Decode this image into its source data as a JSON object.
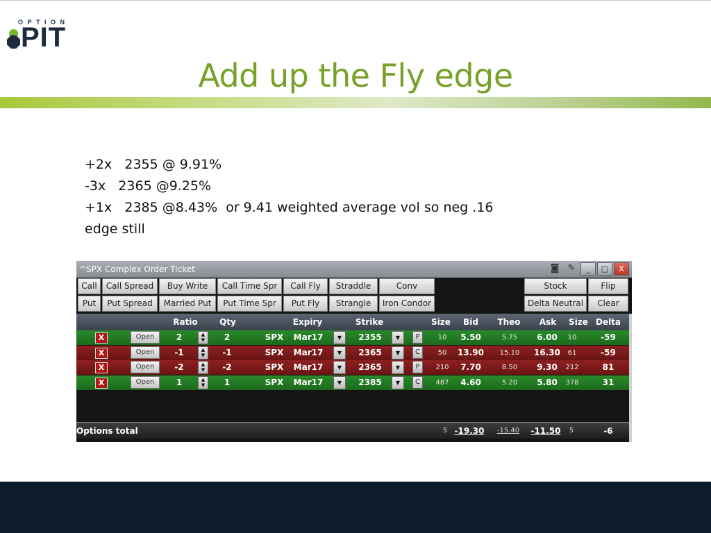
{
  "logo": {
    "small_text": "OPTION",
    "big_text": "PIT"
  },
  "title": "Add up the Fly edge",
  "body_lines": [
    "+2x   2355 @ 9.91%",
    "-3x   2365 @9.25%",
    "+1x   2385 @8.43%  or 9.41 weighted average vol so neg .16",
    "edge still"
  ],
  "ticket": {
    "window_title": "^SPX Complex Order Ticket",
    "controls": {
      "minimize": "_",
      "maximize": "□",
      "close": "X"
    },
    "toolbar": {
      "row1": [
        "Call",
        "Call Spread",
        "Buy Write",
        "Call Time Spr",
        "Call Fly",
        "Straddle",
        "Conv",
        "Stock",
        "Flip"
      ],
      "row2": [
        "Put",
        "Put Spread",
        "Married Put",
        "Put Time Spr",
        "Put Fly",
        "Strangle",
        "Iron Condor",
        "Delta Neutral",
        "Clear"
      ]
    },
    "columns": {
      "ratio": "Ratio",
      "qty": "Qty",
      "expiry": "Expiry",
      "strike": "Strike",
      "size": "Size",
      "bid": "Bid",
      "theo": "Theo",
      "ask": "Ask",
      "ask_size": "Size",
      "delta": "Delta"
    },
    "rows": [
      {
        "side": "buy",
        "x": "X",
        "open": "Open",
        "ratio": "2",
        "qty": "2",
        "symbol": "SPX",
        "expiry": "Mar17",
        "strike": "2355",
        "pc": "P",
        "bid_size": "10",
        "bid": "5.50",
        "theo": "5.75",
        "ask": "6.00",
        "ask_size": "10",
        "delta": "-59"
      },
      {
        "side": "sell",
        "x": "X",
        "open": "Open",
        "ratio": "-1",
        "qty": "-1",
        "symbol": "SPX",
        "expiry": "Mar17",
        "strike": "2365",
        "pc": "C",
        "bid_size": "50",
        "bid": "13.90",
        "theo": "15.10",
        "ask": "16.30",
        "ask_size": "61",
        "delta": "-59"
      },
      {
        "side": "sell",
        "x": "X",
        "open": "Open",
        "ratio": "-2",
        "qty": "-2",
        "symbol": "SPX",
        "expiry": "Mar17",
        "strike": "2365",
        "pc": "P",
        "bid_size": "210",
        "bid": "7.70",
        "theo": "8.50",
        "ask": "9.30",
        "ask_size": "212",
        "delta": "81"
      },
      {
        "side": "buy",
        "x": "X",
        "open": "Open",
        "ratio": "1",
        "qty": "1",
        "symbol": "SPX",
        "expiry": "Mar17",
        "strike": "2385",
        "pc": "C",
        "bid_size": "487",
        "bid": "4.60",
        "theo": "5.20",
        "ask": "5.80",
        "ask_size": "378",
        "delta": "31"
      }
    ],
    "total": {
      "label": "Options total",
      "bid_size": "5",
      "bid": "-19.30",
      "theo": "-15.40",
      "ask": "-11.50",
      "ask_size": "5",
      "delta": "-6"
    }
  },
  "colors": {
    "title_green": "#77a128",
    "buy_row": "#1f7a1f",
    "sell_row": "#7e1a1a",
    "footer": "#0d1c2c"
  }
}
